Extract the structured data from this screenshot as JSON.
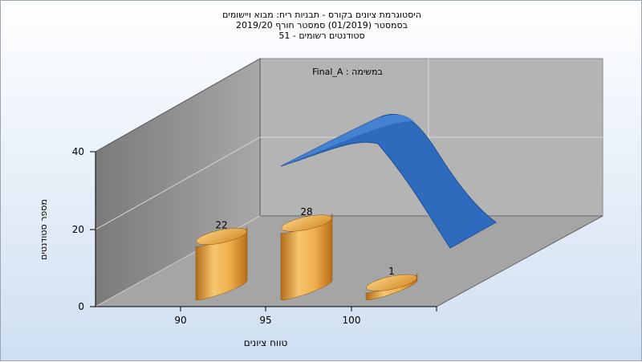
{
  "chart_data": {
    "type": "bar",
    "title_lines": [
      "היסטוגרמת ציונים בקורס - תבניות ריח: מבוא ויישומים",
      "בסמסטר  (01/2019)  סמסטר חורף 2019/20",
      "סטודנטים רשומים - 51"
    ],
    "annotation": "במשימה : Final_A",
    "xlabel": "טווח ציונים",
    "ylabel": "מספר סטודנטים",
    "x_ticks": [
      90,
      95,
      100
    ],
    "y_ticks": [
      0,
      20,
      40
    ],
    "ylim": [
      0,
      40
    ],
    "bins": [
      {
        "x": 90,
        "value": 22
      },
      {
        "x": 95,
        "value": 28
      },
      {
        "x": 100,
        "value": 1
      }
    ],
    "distribution_curve": {
      "type": "normal-fit",
      "color": "#2f6bbd"
    },
    "bar_color": "#e0a040",
    "grid": true,
    "style": "3d"
  }
}
